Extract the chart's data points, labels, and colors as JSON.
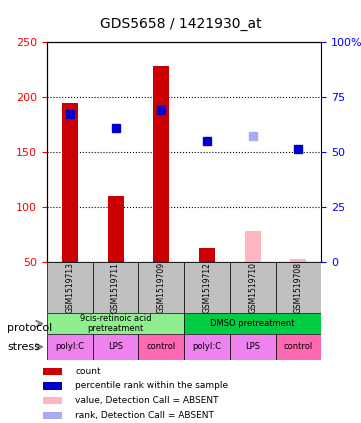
{
  "title": "GDS5658 / 1421930_at",
  "samples": [
    "GSM1519713",
    "GSM1519711",
    "GSM1519709",
    "GSM1519712",
    "GSM1519710",
    "GSM1519708"
  ],
  "bar_values": [
    195,
    110,
    228,
    63,
    null,
    null
  ],
  "bar_absent_values": [
    null,
    null,
    null,
    null,
    78,
    53
  ],
  "rank_values": [
    185,
    172,
    188,
    160,
    null,
    153
  ],
  "rank_absent_values": [
    null,
    null,
    null,
    null,
    165,
    null
  ],
  "ylim": [
    50,
    250
  ],
  "ylabel_left": "",
  "ylabel_right": "",
  "left_yticks": [
    50,
    100,
    150,
    200,
    250
  ],
  "right_yticks": [
    0,
    25,
    50,
    75,
    100
  ],
  "right_ytick_labels": [
    "0",
    "25",
    "50",
    "75",
    "100%"
  ],
  "grid_values": [
    100,
    150,
    200
  ],
  "protocol_groups": [
    {
      "label": "9cis-retinoic acid\npretreatment",
      "start": 0,
      "end": 3,
      "color": "#90EE90"
    },
    {
      "label": "DMSO pretreatment",
      "start": 3,
      "end": 6,
      "color": "#00CC44"
    }
  ],
  "stress_groups": [
    {
      "label": "polyI:C",
      "start": 0,
      "end": 1,
      "color": "#EE82EE"
    },
    {
      "label": "LPS",
      "start": 1,
      "end": 2,
      "color": "#EE82EE"
    },
    {
      "label": "control",
      "start": 2,
      "end": 3,
      "color": "#FF69B4"
    },
    {
      "label": "polyI:C",
      "start": 3,
      "end": 4,
      "color": "#EE82EE"
    },
    {
      "label": "LPS",
      "start": 4,
      "end": 5,
      "color": "#EE82EE"
    },
    {
      "label": "control",
      "start": 5,
      "end": 6,
      "color": "#FF69B4"
    }
  ],
  "bar_color": "#CC0000",
  "bar_absent_color": "#FFB6C1",
  "rank_color": "#0000CC",
  "rank_absent_color": "#AAAAEE",
  "sample_bg_color": "#C0C0C0",
  "legend_items": [
    {
      "label": "count",
      "color": "#CC0000"
    },
    {
      "label": "percentile rank within the sample",
      "color": "#0000CC"
    },
    {
      "label": "value, Detection Call = ABSENT",
      "color": "#FFB6C1"
    },
    {
      "label": "rank, Detection Call = ABSENT",
      "color": "#AAAAEE"
    }
  ]
}
